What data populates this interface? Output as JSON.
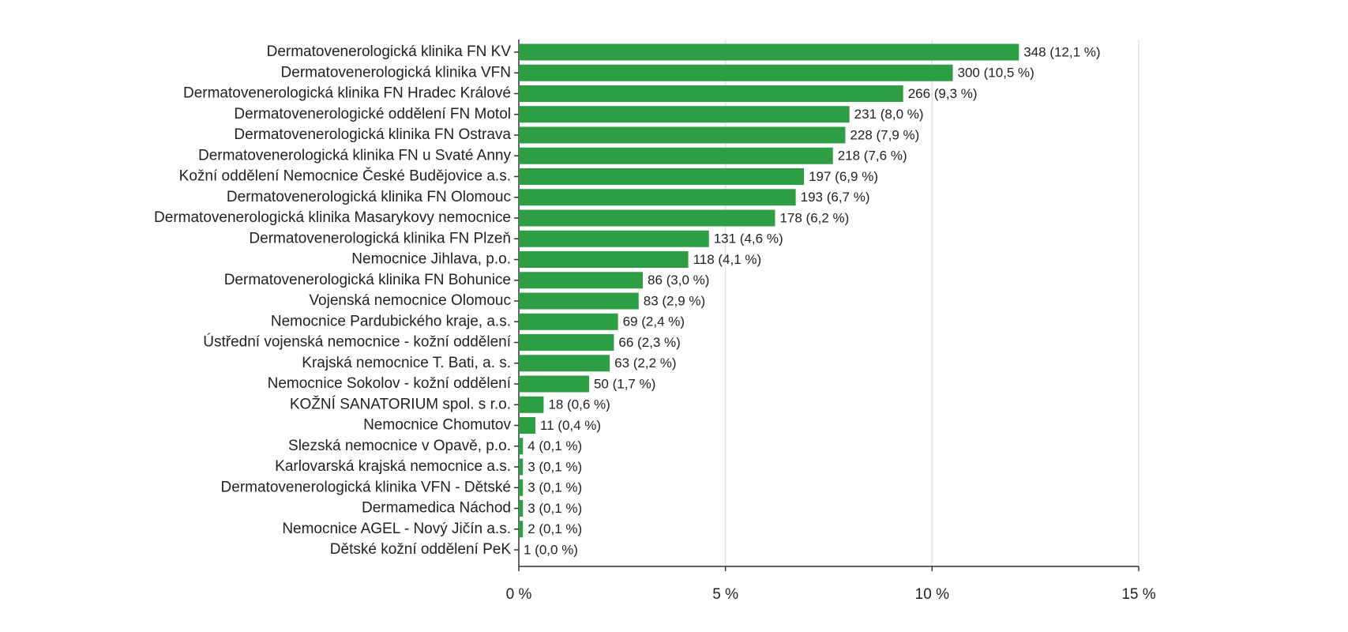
{
  "chart_data": {
    "type": "bar",
    "orientation": "horizontal",
    "categories": [
      "Dermatovenerologická klinika FN KV",
      "Dermatovenerologická klinika VFN",
      "Dermatovenerologická klinika FN Hradec Králové",
      "Dermatovenerologické oddělení FN Motol",
      "Dermatovenerologická klinika FN Ostrava",
      "Dermatovenerologická klinika FN u Svaté Anny",
      "Kožní oddělení Nemocnice České Budějovice a.s.",
      "Dermatovenerologická klinika FN Olomouc",
      "Dermatovenerologická klinika Masarykovy nemocnice",
      "Dermatovenerologická klinika FN Plzeň",
      "Nemocnice Jihlava, p.o.",
      "Dermatovenerologická klinika FN Bohunice",
      "Vojenská nemocnice Olomouc",
      "Nemocnice Pardubického kraje, a.s.",
      "Ústřední vojenská nemocnice - kožní oddělení",
      "Krajská nemocnice T. Bati, a. s.",
      "Nemocnice Sokolov - kožní oddělení",
      "KOŽNÍ SANATORIUM spol. s r.o.",
      "Nemocnice Chomutov",
      "Slezská nemocnice v Opavě, p.o.",
      "Karlovarská krajská nemocnice a.s.",
      "Dermatovenerologická klinika VFN - Dětské",
      "Dermamedica Náchod",
      "Nemocnice AGEL - Nový Jičín a.s.",
      "Dětské kožní oddělení PeK"
    ],
    "values": [
      12.1,
      10.5,
      9.3,
      8.0,
      7.9,
      7.6,
      6.9,
      6.7,
      6.2,
      4.6,
      4.1,
      3.0,
      2.9,
      2.4,
      2.3,
      2.2,
      1.7,
      0.6,
      0.4,
      0.1,
      0.1,
      0.1,
      0.1,
      0.1,
      0.0
    ],
    "value_labels": [
      "348 (12,1 %)",
      "300 (10,5 %)",
      "266 (9,3 %)",
      "231 (8,0 %)",
      "228 (7,9 %)",
      "218 (7,6 %)",
      "197 (6,9 %)",
      "193 (6,7 %)",
      "178 (6,2 %)",
      "131 (4,6 %)",
      "118 (4,1 %)",
      "86 (3,0 %)",
      "83 (2,9 %)",
      "69 (2,4 %)",
      "66 (2,3 %)",
      "63 (2,2 %)",
      "50 (1,7 %)",
      "18 (0,6 %)",
      "11 (0,4 %)",
      "4 (0,1 %)",
      "3 (0,1 %)",
      "3 (0,1 %)",
      "3 (0,1 %)",
      "2 (0,1 %)",
      "1 (0,0 %)"
    ],
    "color": "#2e9e44",
    "xlim": [
      0,
      15
    ],
    "xticks": [
      {
        "value": 0,
        "label": "0 %"
      },
      {
        "value": 5,
        "label": "5 %"
      },
      {
        "value": 10,
        "label": "10 %"
      },
      {
        "value": 15,
        "label": "15 %"
      }
    ],
    "grid": true
  }
}
